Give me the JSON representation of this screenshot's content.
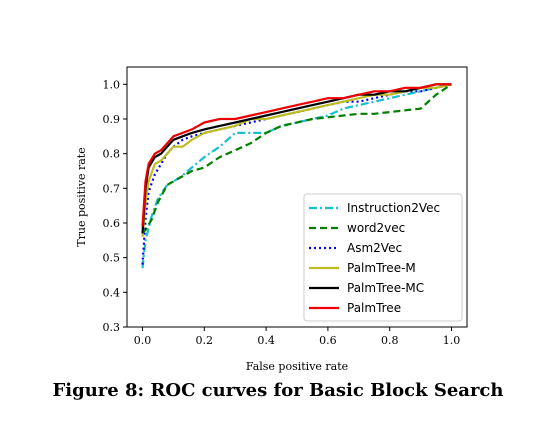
{
  "caption": "Figure 8: ROC curves for Basic Block Search",
  "chart_data": {
    "type": "line",
    "title": "",
    "xlabel": "False positive rate",
    "ylabel": "True positive rate",
    "xlim": [
      -0.05,
      1.05
    ],
    "ylim": [
      0.3,
      1.05
    ],
    "xticks": [
      0.0,
      0.2,
      0.4,
      0.6,
      0.8,
      1.0
    ],
    "xtick_labels": [
      "0.0",
      "0.2",
      "0.4",
      "0.6",
      "0.8",
      "1.0"
    ],
    "yticks": [
      0.3,
      0.4,
      0.5,
      0.6,
      0.7,
      0.8,
      0.9,
      1.0
    ],
    "ytick_labels": [
      "0.3",
      "0.4",
      "0.5",
      "0.6",
      "0.7",
      "0.8",
      "0.9",
      "1.0"
    ],
    "grid": false,
    "legend_position": "lower-right",
    "series": [
      {
        "name": "Instruction2Vec",
        "color": "#17becf",
        "dash": "dashdot",
        "x": [
          0.0,
          0.01,
          0.03,
          0.05,
          0.08,
          0.12,
          0.16,
          0.2,
          0.25,
          0.3,
          0.35,
          0.4,
          0.45,
          0.5,
          0.55,
          0.6,
          0.65,
          0.7,
          0.75,
          0.8,
          0.85,
          0.9,
          0.95,
          1.0
        ],
        "y": [
          0.47,
          0.55,
          0.62,
          0.67,
          0.71,
          0.73,
          0.76,
          0.79,
          0.82,
          0.86,
          0.86,
          0.86,
          0.88,
          0.89,
          0.9,
          0.91,
          0.93,
          0.94,
          0.95,
          0.96,
          0.97,
          0.98,
          0.99,
          1.0
        ]
      },
      {
        "name": "word2vec",
        "color": "#008000",
        "dash": "dashed",
        "x": [
          0.0,
          0.01,
          0.03,
          0.05,
          0.08,
          0.12,
          0.16,
          0.2,
          0.25,
          0.3,
          0.35,
          0.4,
          0.45,
          0.5,
          0.55,
          0.6,
          0.65,
          0.7,
          0.75,
          0.8,
          0.85,
          0.9,
          0.95,
          1.0
        ],
        "y": [
          0.57,
          0.58,
          0.61,
          0.66,
          0.71,
          0.73,
          0.75,
          0.76,
          0.79,
          0.81,
          0.83,
          0.86,
          0.88,
          0.89,
          0.9,
          0.905,
          0.91,
          0.915,
          0.915,
          0.92,
          0.925,
          0.93,
          0.97,
          1.0
        ]
      },
      {
        "name": "Asm2Vec",
        "color": "#0000ee",
        "dash": "dotted",
        "x": [
          0.0,
          0.01,
          0.02,
          0.04,
          0.06,
          0.08,
          0.1,
          0.13,
          0.16,
          0.2,
          0.25,
          0.3,
          0.35,
          0.4,
          0.45,
          0.5,
          0.55,
          0.6,
          0.65,
          0.7,
          0.75,
          0.8,
          0.85,
          0.9,
          0.95,
          1.0
        ],
        "y": [
          0.48,
          0.61,
          0.69,
          0.74,
          0.77,
          0.8,
          0.82,
          0.84,
          0.85,
          0.86,
          0.87,
          0.88,
          0.89,
          0.9,
          0.91,
          0.92,
          0.93,
          0.94,
          0.95,
          0.95,
          0.96,
          0.97,
          0.98,
          0.98,
          0.99,
          1.0
        ]
      },
      {
        "name": "PalmTree-M",
        "color": "#bcbd22",
        "dash": "solid",
        "x": [
          0.0,
          0.01,
          0.02,
          0.04,
          0.06,
          0.08,
          0.1,
          0.13,
          0.16,
          0.2,
          0.25,
          0.3,
          0.35,
          0.4,
          0.45,
          0.5,
          0.55,
          0.6,
          0.65,
          0.7,
          0.75,
          0.8,
          0.85,
          0.9,
          0.95,
          1.0
        ],
        "y": [
          0.56,
          0.66,
          0.72,
          0.77,
          0.78,
          0.8,
          0.82,
          0.82,
          0.84,
          0.86,
          0.87,
          0.88,
          0.9,
          0.9,
          0.91,
          0.92,
          0.93,
          0.94,
          0.95,
          0.96,
          0.97,
          0.97,
          0.98,
          0.99,
          0.99,
          1.0
        ]
      },
      {
        "name": "PalmTree-MC",
        "color": "#000000",
        "dash": "solid",
        "x": [
          0.0,
          0.01,
          0.02,
          0.04,
          0.06,
          0.08,
          0.1,
          0.13,
          0.16,
          0.2,
          0.25,
          0.3,
          0.35,
          0.4,
          0.45,
          0.5,
          0.55,
          0.6,
          0.65,
          0.7,
          0.75,
          0.8,
          0.85,
          0.9,
          0.95,
          1.0
        ],
        "y": [
          0.57,
          0.7,
          0.76,
          0.79,
          0.8,
          0.82,
          0.84,
          0.85,
          0.86,
          0.87,
          0.88,
          0.89,
          0.9,
          0.91,
          0.92,
          0.93,
          0.94,
          0.95,
          0.96,
          0.97,
          0.97,
          0.98,
          0.98,
          0.99,
          1.0,
          1.0
        ]
      },
      {
        "name": "PalmTree",
        "color": "#ee0000",
        "dash": "solid",
        "x": [
          0.0,
          0.01,
          0.02,
          0.04,
          0.06,
          0.08,
          0.1,
          0.13,
          0.16,
          0.2,
          0.25,
          0.3,
          0.35,
          0.4,
          0.45,
          0.5,
          0.55,
          0.6,
          0.65,
          0.7,
          0.75,
          0.8,
          0.85,
          0.9,
          0.95,
          1.0
        ],
        "y": [
          0.59,
          0.72,
          0.77,
          0.8,
          0.81,
          0.83,
          0.85,
          0.86,
          0.87,
          0.89,
          0.9,
          0.9,
          0.91,
          0.92,
          0.93,
          0.94,
          0.95,
          0.96,
          0.96,
          0.97,
          0.98,
          0.98,
          0.99,
          0.99,
          1.0,
          1.0
        ]
      }
    ]
  }
}
